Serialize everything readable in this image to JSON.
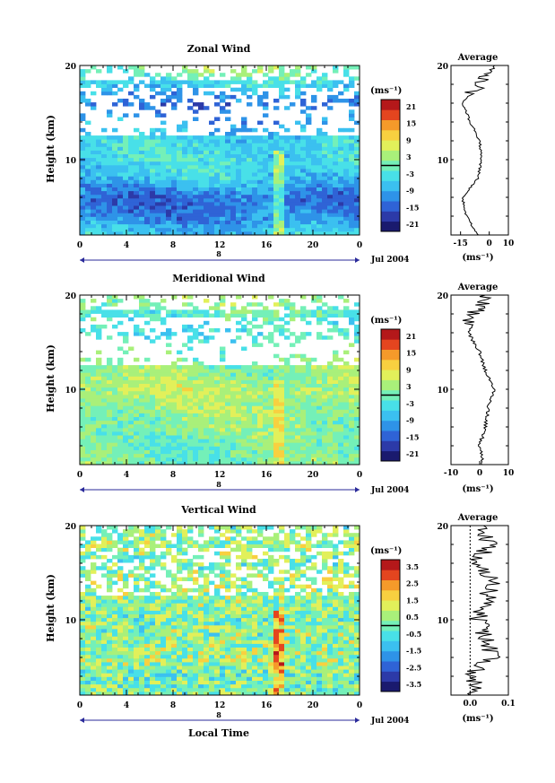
{
  "figure": {
    "xlabel": "Local Time",
    "panels": [
      {
        "title": "Zonal Wind",
        "ylabel": "Height (km)",
        "unit_label": "(ms⁻¹)",
        "avg_title": "Average",
        "avg_xlabel": "(ms⁻¹)",
        "date_label": "Jul 2004",
        "day_marker": "8",
        "yticks": [
          "10",
          "20"
        ],
        "xticks": [
          "0",
          "4",
          "8",
          "12",
          "16",
          "20",
          "0"
        ],
        "cbar_ticks": [
          "21",
          "15",
          "9",
          "3",
          "-3",
          "-9",
          "-15",
          "-21"
        ],
        "avg_xticks": [
          "-15",
          "0",
          "10"
        ]
      },
      {
        "title": "Meridional Wind",
        "ylabel": "Height (km)",
        "unit_label": "(ms⁻¹)",
        "avg_title": "Average",
        "avg_xlabel": "(ms⁻¹)",
        "date_label": "Jul 2004",
        "day_marker": "8",
        "yticks": [
          "10",
          "20"
        ],
        "xticks": [
          "0",
          "4",
          "8",
          "12",
          "16",
          "20",
          "0"
        ],
        "cbar_ticks": [
          "21",
          "15",
          "9",
          "3",
          "-3",
          "-9",
          "-15",
          "-21"
        ],
        "avg_xticks": [
          "-10",
          "0",
          "10"
        ]
      },
      {
        "title": "Vertical Wind",
        "ylabel": "Height (km)",
        "unit_label": "(ms⁻¹)",
        "avg_title": "Average",
        "avg_xlabel": "(ms⁻¹)",
        "date_label": "Jul 2004",
        "day_marker": "8",
        "yticks": [
          "10",
          "20"
        ],
        "xticks": [
          "0",
          "4",
          "8",
          "12",
          "16",
          "20",
          "0"
        ],
        "cbar_ticks": [
          "3.5",
          "2.5",
          "1.5",
          "0.5",
          "-0.5",
          "-1.5",
          "-2.5",
          "-3.5"
        ],
        "avg_xticks": [
          "0.0",
          "0.1"
        ]
      }
    ]
  },
  "chart_data": [
    {
      "type": "heatmap",
      "title": "Zonal Wind",
      "xlabel": "",
      "ylabel": "Height (km)",
      "xlim": [
        0,
        24
      ],
      "ylim": [
        2,
        20
      ],
      "colorbar": {
        "label": "(ms⁻¹)",
        "range": [
          -24,
          24
        ],
        "contour_level": 0
      },
      "description_profile_heights_km": [
        2,
        4,
        6,
        8,
        10,
        12,
        14,
        16,
        18,
        20
      ],
      "profile_values": [
        -6,
        -12,
        -14,
        -6,
        -4,
        -5,
        -10,
        -14,
        -5,
        4
      ],
      "avg_xlim": [
        -20,
        10
      ]
    },
    {
      "type": "heatmap",
      "title": "Meridional Wind",
      "xlabel": "",
      "ylabel": "Height (km)",
      "xlim": [
        0,
        24
      ],
      "ylim": [
        2,
        20
      ],
      "colorbar": {
        "label": "(ms⁻¹)",
        "range": [
          -24,
          24
        ],
        "contour_level": 0
      },
      "description_profile_heights_km": [
        2,
        4,
        6,
        8,
        10,
        12,
        14,
        16,
        18,
        20
      ],
      "profile_values": [
        1,
        0,
        2,
        3,
        5,
        2,
        0,
        -4,
        -1,
        4
      ],
      "avg_xlim": [
        -10,
        10
      ]
    },
    {
      "type": "heatmap",
      "title": "Vertical Wind",
      "xlabel": "Local Time",
      "ylabel": "Height (km)",
      "xlim": [
        0,
        24
      ],
      "ylim": [
        2,
        20
      ],
      "colorbar": {
        "label": "(ms⁻¹)",
        "range": [
          -4,
          4
        ],
        "contour_level": 0
      },
      "description_profile_heights_km": [
        2,
        4,
        6,
        8,
        10,
        12,
        14,
        16,
        18,
        20
      ],
      "profile_values": [
        0.02,
        0.0,
        0.06,
        0.04,
        0.02,
        0.04,
        0.06,
        0.02,
        0.05,
        0.03
      ],
      "avg_xlim": [
        -0.05,
        0.1
      ]
    }
  ]
}
